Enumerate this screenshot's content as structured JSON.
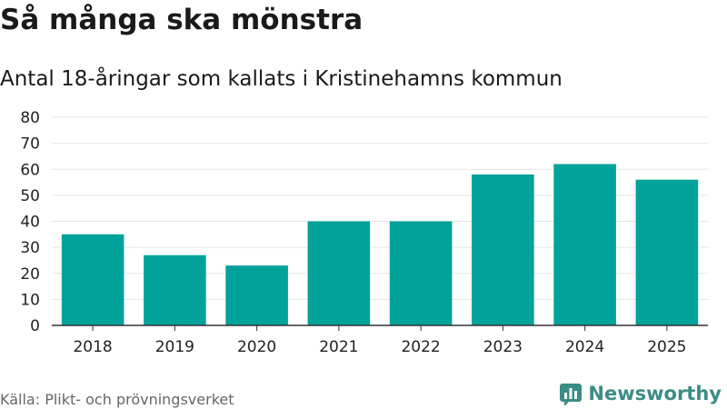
{
  "title": "Så många ska mönstra",
  "subtitle": "Antal 18-åringar som kallats i Kristinehamns kommun",
  "source": "Källa: Plikt- och prövningsverket",
  "brand": {
    "name": "Newsworthy",
    "icon": "bar-chart-logo-icon",
    "color": "#3b8c86"
  },
  "colors": {
    "bar": "#00a29a",
    "grid": "#e5e5e5",
    "axis": "#333333"
  },
  "chart_data": {
    "type": "bar",
    "categories": [
      "2018",
      "2019",
      "2020",
      "2021",
      "2022",
      "2023",
      "2024",
      "2025"
    ],
    "values": [
      35,
      27,
      23,
      40,
      40,
      58,
      62,
      56
    ],
    "title": "Så många ska mönstra",
    "subtitle": "Antal 18-åringar som kallats i Kristinehamns kommun",
    "xlabel": "",
    "ylabel": "",
    "ylim": [
      0,
      80
    ],
    "yticks": [
      0,
      10,
      20,
      30,
      40,
      50,
      60,
      70,
      80
    ],
    "grid": true,
    "legend": "none"
  }
}
